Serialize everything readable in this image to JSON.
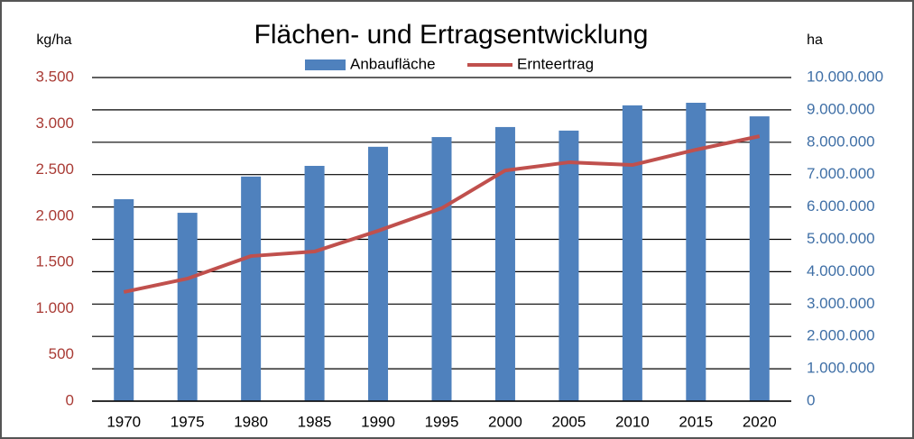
{
  "chart_data": {
    "type": "combo",
    "title": "Flächen- und Ertragsentwicklung",
    "y_axis_label": "kg/ha",
    "y2_axis_label": "ha",
    "categories": [
      "1970",
      "1975",
      "1980",
      "1985",
      "1990",
      "1995",
      "2000",
      "2005",
      "2010",
      "2015",
      "2020"
    ],
    "series": [
      {
        "name": "Anbaufläche",
        "type": "bar",
        "axis": "y2",
        "color": "#4f81bd",
        "values": [
          6240000,
          5820000,
          6940000,
          7270000,
          7860000,
          8160000,
          8470000,
          8360000,
          9140000,
          9220000,
          8800000
        ]
      },
      {
        "name": "Ernteertrag",
        "type": "line",
        "axis": "y",
        "color": "#c0504d",
        "values": [
          1180,
          1325,
          1569,
          1618,
          1842,
          2086,
          2495,
          2583,
          2554,
          2719,
          2865
        ]
      }
    ],
    "ylim": [
      0,
      3500
    ],
    "yticks": [
      0,
      500,
      {
        "value": 1000,
        "label": "1.000"
      },
      {
        "value": 1500,
        "label": "1.500"
      },
      {
        "value": 2000,
        "label": "2.000"
      },
      {
        "value": 2500,
        "label": "2.500"
      },
      {
        "value": 3000,
        "label": "3.000"
      },
      {
        "value": 3500,
        "label": "3.500"
      }
    ],
    "y2lim": [
      0,
      10000000
    ],
    "y2ticks": [
      0,
      {
        "value": 1000000,
        "label": "1.000.000"
      },
      {
        "value": 2000000,
        "label": "2.000.000"
      },
      {
        "value": 3000000,
        "label": "3.000.000"
      },
      {
        "value": 4000000,
        "label": "4.000.000"
      },
      {
        "value": 5000000,
        "label": "5.000.000"
      },
      {
        "value": 6000000,
        "label": "6.000.000"
      },
      {
        "value": 7000000,
        "label": "7.000.000"
      },
      {
        "value": 8000000,
        "label": "8.000.000"
      },
      {
        "value": 9000000,
        "label": "9.000.000"
      },
      {
        "value": 10000000,
        "label": "10.000.000"
      }
    ],
    "grid": true,
    "y_tick_color": "#a93b35",
    "y2_tick_color": "#3f6fa6"
  }
}
